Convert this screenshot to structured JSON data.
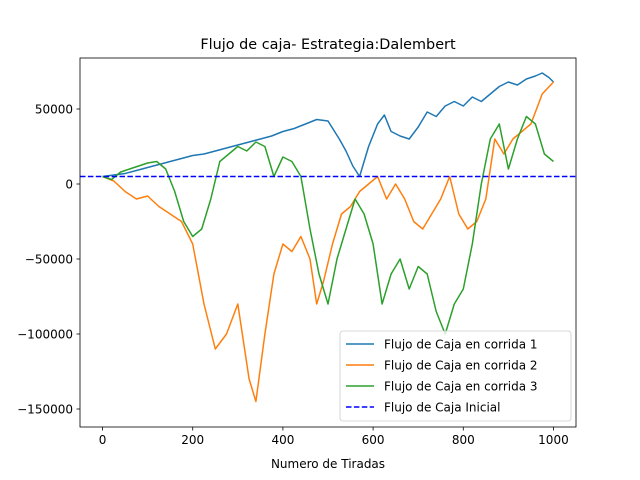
{
  "chart_data": {
    "type": "line",
    "title": "Flujo de caja- Estrategia:Dalembert",
    "xlabel": "Numero de Tiradas",
    "ylabel": "",
    "xlim": [
      -50,
      1050
    ],
    "ylim": [
      -162000,
      84000
    ],
    "xticks": [
      0,
      200,
      400,
      600,
      800,
      1000
    ],
    "yticks": [
      -150000,
      -100000,
      -50000,
      0,
      50000
    ],
    "grid": false,
    "legend_position": "lower-right",
    "series": [
      {
        "name": "Flujo de Caja en corrida 1",
        "color": "#1f77b4",
        "x": [
          0,
          25,
          50,
          75,
          100,
          125,
          150,
          175,
          200,
          225,
          250,
          275,
          300,
          325,
          350,
          375,
          400,
          425,
          450,
          475,
          500,
          525,
          540,
          555,
          570,
          590,
          610,
          625,
          640,
          660,
          680,
          700,
          720,
          740,
          760,
          780,
          800,
          820,
          840,
          860,
          880,
          900,
          920,
          940,
          960,
          975,
          990,
          1000
        ],
        "y": [
          5000,
          6000,
          7000,
          9000,
          11000,
          13000,
          15000,
          17000,
          19000,
          20000,
          22000,
          24000,
          26000,
          28000,
          30000,
          32000,
          35000,
          37000,
          40000,
          43000,
          42000,
          30000,
          22000,
          12000,
          5000,
          25000,
          40000,
          46000,
          35000,
          32000,
          30000,
          38000,
          48000,
          45000,
          52000,
          55000,
          52000,
          58000,
          55000,
          60000,
          65000,
          68000,
          66000,
          70000,
          72000,
          74000,
          71000,
          68000
        ]
      },
      {
        "name": "Flujo de Caja en corrida 2",
        "color": "#ff7f0e",
        "x": [
          0,
          25,
          50,
          75,
          100,
          125,
          150,
          175,
          200,
          225,
          250,
          275,
          300,
          325,
          340,
          360,
          380,
          400,
          420,
          440,
          460,
          475,
          490,
          510,
          530,
          550,
          570,
          590,
          610,
          630,
          650,
          670,
          690,
          710,
          730,
          750,
          770,
          790,
          810,
          830,
          850,
          870,
          890,
          910,
          930,
          950,
          975,
          1000
        ],
        "y": [
          5000,
          2000,
          -5000,
          -10000,
          -8000,
          -15000,
          -20000,
          -25000,
          -40000,
          -80000,
          -110000,
          -100000,
          -80000,
          -130000,
          -145000,
          -100000,
          -60000,
          -40000,
          -45000,
          -35000,
          -50000,
          -80000,
          -65000,
          -40000,
          -20000,
          -15000,
          -5000,
          0,
          5000,
          -10000,
          0,
          -10000,
          -25000,
          -30000,
          -20000,
          -10000,
          5000,
          -20000,
          -30000,
          -25000,
          -10000,
          30000,
          20000,
          30000,
          35000,
          40000,
          60000,
          68000
        ]
      },
      {
        "name": "Flujo de Caja en corrida 3",
        "color": "#2ca02c",
        "x": [
          0,
          20,
          40,
          60,
          80,
          100,
          120,
          140,
          160,
          180,
          200,
          220,
          240,
          260,
          280,
          300,
          320,
          340,
          360,
          380,
          400,
          420,
          440,
          460,
          480,
          500,
          520,
          540,
          560,
          580,
          600,
          620,
          640,
          660,
          680,
          700,
          720,
          740,
          760,
          780,
          800,
          820,
          840,
          860,
          880,
          900,
          920,
          940,
          960,
          980,
          1000
        ],
        "y": [
          5000,
          3000,
          8000,
          10000,
          12000,
          14000,
          15000,
          10000,
          -5000,
          -25000,
          -35000,
          -30000,
          -10000,
          15000,
          20000,
          25000,
          22000,
          28000,
          25000,
          5000,
          18000,
          15000,
          5000,
          -30000,
          -60000,
          -80000,
          -50000,
          -30000,
          -10000,
          -20000,
          -40000,
          -80000,
          -60000,
          -50000,
          -70000,
          -55000,
          -60000,
          -85000,
          -100000,
          -80000,
          -70000,
          -40000,
          0,
          30000,
          40000,
          10000,
          30000,
          45000,
          40000,
          20000,
          15000
        ]
      },
      {
        "name": "Flujo de Caja Inicial",
        "color": "#0000ff",
        "dashed": true,
        "x": [
          -50,
          1050
        ],
        "y": [
          5000,
          5000
        ]
      }
    ]
  }
}
